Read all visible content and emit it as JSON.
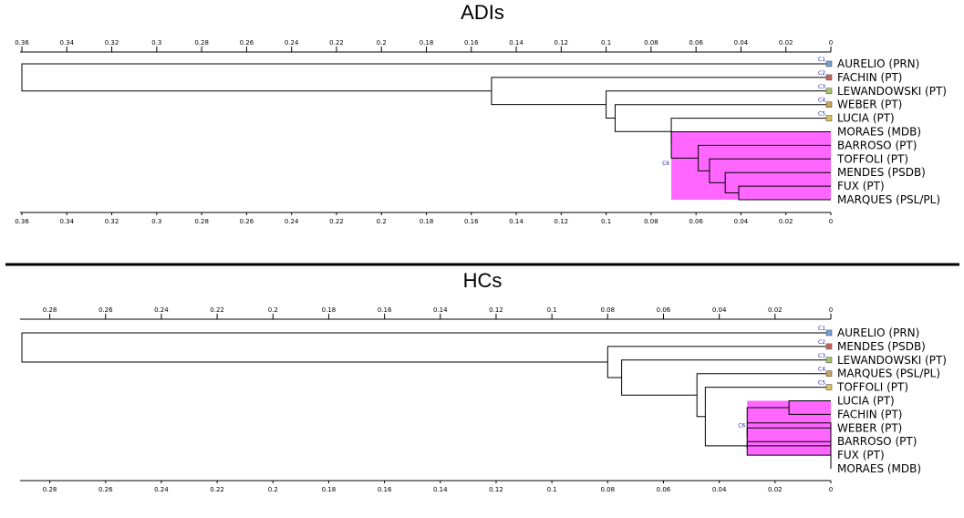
{
  "panels": [
    {
      "title": "ADIs",
      "axis_max": 0.36,
      "tick_step": 0.02,
      "tick_labels": [
        "0.36",
        "0.34",
        "0.32",
        "0.3",
        "0.28",
        "0.26",
        "0.24",
        "0.22",
        "0.2",
        "0.18",
        "0.16",
        "0.14",
        "0.12",
        "0.1",
        "0.08",
        "0.06",
        "0.04",
        "0.02",
        "0"
      ],
      "leaves": [
        "AURELIO (PRN)",
        "FACHIN (PT)",
        "LEWANDOWSKI (PT)",
        "WEBER (PT)",
        "LUCIA (PT)",
        "MORAES (MDB)",
        "BARROSO (PT)",
        "TOFFOLI (PT)",
        "MENDES (PSDB)",
        "FUX (PT)",
        "MARQUES (PSL/PL)"
      ],
      "cluster_labels": [
        "C1",
        "C2",
        "C3",
        "C4",
        "C5",
        "C6"
      ],
      "marker_colors": [
        "#6fa0d6",
        "#c8625a",
        "#a9c66a",
        "#c9a45a",
        "#d9c25a"
      ],
      "merges": [
        {
          "a": 9,
          "b": 10,
          "height": 0.041
        },
        {
          "a": 8,
          "b": 11,
          "height": 0.047
        },
        {
          "a": 7,
          "b": 12,
          "height": 0.054
        },
        {
          "a": 6,
          "b": 13,
          "height": 0.059
        },
        {
          "a": 5,
          "b": 14,
          "height": 0.071
        },
        {
          "a": 4,
          "b": 15,
          "height": 0.071
        },
        {
          "a": 3,
          "b": 16,
          "height": 0.096
        },
        {
          "a": 2,
          "b": 17,
          "height": 0.1
        },
        {
          "a": 1,
          "b": 18,
          "height": 0.151
        },
        {
          "a": 0,
          "b": 19,
          "height": 0.36
        }
      ],
      "highlight_leaves": [
        5,
        10
      ],
      "highlight_height": 0.071,
      "highlight_color": "#ff66ff"
    },
    {
      "title": "HCs",
      "axis_max": 0.29,
      "tick_step": 0.02,
      "tick_labels": [
        "0.28",
        "0.26",
        "0.24",
        "0.22",
        "0.2",
        "0.18",
        "0.16",
        "0.14",
        "0.12",
        "0.1",
        "0.08",
        "0.06",
        "0.04",
        "0.02",
        "0"
      ],
      "leaves": [
        "AURELIO (PRN)",
        "MENDES (PSDB)",
        "LEWANDOWSKI (PT)",
        "MARQUES (PSL/PL)",
        "TOFFOLI (PT)",
        "LUCIA (PT)",
        "FACHIN (PT)",
        "WEBER (PT)",
        "BARROSO (PT)",
        "FUX (PT)",
        "MORAES (MDB)"
      ],
      "cluster_labels": [
        "C1",
        "C2",
        "C3",
        "C4",
        "C5",
        "C6"
      ],
      "marker_colors": [
        "#6fa0d6",
        "#c8625a",
        "#a9c66a",
        "#c9a45a",
        "#d9c25a"
      ],
      "merges": [
        {
          "a": 5,
          "b": 6,
          "height": 0.015
        },
        {
          "a": 8,
          "b": 9,
          "height": 0.03
        },
        {
          "a": 7,
          "b": 12,
          "height": 0.03
        },
        {
          "a": 11,
          "b": 13,
          "height": 0.03
        },
        {
          "a": 10,
          "b": 14,
          "height": 0.0
        },
        {
          "a": 4,
          "b": 15,
          "height": 0.045
        },
        {
          "a": 3,
          "b": 16,
          "height": 0.048
        },
        {
          "a": 2,
          "b": 17,
          "height": 0.075
        },
        {
          "a": 1,
          "b": 18,
          "height": 0.08
        },
        {
          "a": 0,
          "b": 19,
          "height": 0.29
        }
      ],
      "highlight_leaves": [
        5,
        9
      ],
      "highlight_height": 0.03,
      "highlight_color": "#ff66ff"
    }
  ]
}
